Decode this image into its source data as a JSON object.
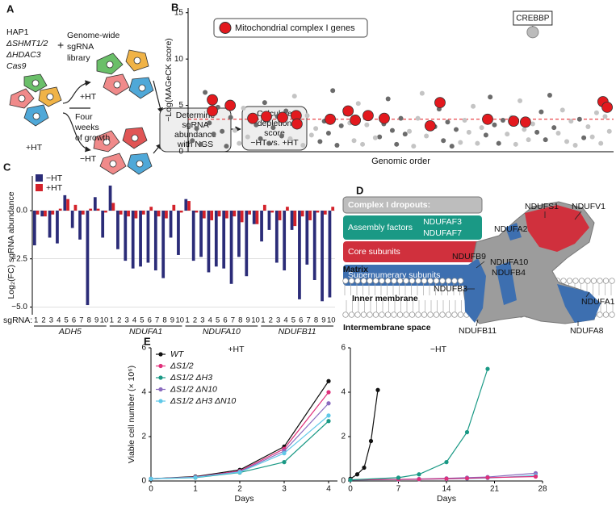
{
  "panels": [
    "A",
    "B",
    "C",
    "D",
    "E"
  ],
  "panel_a": {
    "strain": [
      "HAP1",
      "ΔSHMT1/2",
      "ΔHDAC3",
      "Cas9"
    ],
    "plus": "+",
    "library": [
      "Genome-wide",
      "sgRNA",
      "library"
    ],
    "start_condition": "+HT",
    "arrow_plus": "+HT",
    "arrow_minus": "−HT",
    "growth": [
      "Four",
      "weeks",
      "of growth"
    ],
    "box1": [
      "Determine",
      "sgRNA",
      "abundance",
      "with NGS"
    ],
    "box2": [
      "Calculate",
      "depletion",
      "score",
      "−HT vs. +HT"
    ]
  },
  "panel_d": {
    "legend_title": "Complex I dropouts:",
    "assembly": "Assembly factors",
    "assembly_genes": [
      "NDUFAF3",
      "NDUFAF7"
    ],
    "core": "Core subunits",
    "supernumerary": "Supernumerary subunits",
    "regions": [
      "Matrix",
      "Inner membrane",
      "Intermembrane space"
    ],
    "subunits": [
      "NDUFS1",
      "NDUFV1",
      "NDUFA2",
      "NDUFB9",
      "NDUFA10",
      "NDUFB4",
      "NDUFB3",
      "NDUFA1",
      "NDUFB11",
      "NDUFA8"
    ]
  },
  "chart_data": [
    {
      "type": "scatter",
      "y_label": "−Log(MAGeCK score)",
      "x_label": "Genomic order",
      "xlim": [
        0,
        100
      ],
      "ylim": [
        0,
        15.5
      ],
      "yticks": [
        0,
        5,
        10,
        15
      ],
      "threshold": 3.5,
      "legend": "upper left",
      "series": [
        {
          "color": "#6b6b6b",
          "x": [
            1,
            2,
            3,
            4,
            5,
            6,
            7,
            8,
            9,
            10,
            16,
            17,
            18,
            19,
            20,
            21,
            22,
            23,
            31,
            32,
            33,
            34,
            35,
            36,
            37,
            45,
            46,
            47,
            48,
            49,
            50,
            51,
            58,
            59,
            60,
            61,
            62,
            63,
            70,
            71,
            72,
            73,
            74,
            82,
            83,
            84,
            85,
            86,
            92,
            93
          ],
          "values": [
            1.2,
            2.5,
            0.8,
            6.4,
            3.1,
            1.9,
            4.8,
            2.2,
            0.6,
            3.7,
            2.9,
            1.4,
            5.3,
            0.9,
            2.6,
            3.8,
            1.7,
            4.4,
            1.1,
            3.3,
            2.0,
            6.6,
            0.7,
            2.8,
            4.1,
            1.6,
            3.0,
            5.7,
            2.3,
            0.8,
            3.6,
            1.9,
            2.7,
            4.6,
            1.2,
            3.2,
            0.6,
            2.4,
            1.8,
            5.9,
            2.9,
            0.9,
            3.4,
            2.1,
            4.3,
            1.3,
            6.1,
            2.6,
            3.5,
            1.5
          ]
        },
        {
          "color": "#c4c4c4",
          "x": [
            11,
            12,
            13,
            14,
            15,
            24,
            25,
            26,
            27,
            28,
            29,
            30,
            38,
            39,
            40,
            41,
            42,
            43,
            44,
            52,
            53,
            54,
            55,
            56,
            57,
            64,
            65,
            66,
            67,
            68,
            69,
            75,
            76,
            77,
            78,
            79,
            80,
            81,
            87,
            88,
            89,
            90,
            91,
            94,
            95,
            96,
            97,
            98,
            99
          ],
          "values": [
            2.3,
            0.9,
            4.7,
            1.6,
            3.2,
            1.4,
            6.0,
            2.7,
            0.7,
            3.9,
            1.8,
            2.5,
            3.1,
            1.2,
            5.2,
            0.8,
            2.9,
            4.0,
            1.5,
            2.2,
            0.6,
            3.6,
            6.3,
            1.7,
            2.8,
            1.0,
            3.4,
            2.1,
            4.9,
            0.9,
            2.6,
            1.9,
            3.7,
            0.8,
            5.5,
            2.4,
            1.3,
            3.0,
            2.0,
            4.5,
            1.1,
            3.3,
            0.7,
            2.7,
            1.6,
            4.2,
            0.9,
            3.8,
            2.2
          ]
        },
        {
          "name": "Mitochondrial complex I genes",
          "color": "#e3191e",
          "x": [
            5.7,
            5.7,
            9.9,
            15.2,
            18.4,
            22.2,
            25.4,
            25.6,
            33.4,
            37.6,
            39.3,
            42.3,
            46.1,
            56.9,
            59.2,
            70.4,
            76.5,
            79.3,
            97.5,
            98.5
          ],
          "values": [
            4.4,
            5.6,
            5.0,
            3.6,
            3.8,
            3.7,
            3.9,
            3.0,
            3.5,
            4.4,
            3.4,
            3.9,
            3.6,
            2.8,
            5.3,
            3.5,
            3.3,
            3.2,
            5.4,
            4.8
          ]
        }
      ],
      "annotations": [
        {
          "text": "CREBBP",
          "x": 81,
          "y": 12.9
        }
      ]
    },
    {
      "type": "bar",
      "y_label": "Log₂(FC) sgRNA abundance",
      "x_label": "sgRNA:",
      "ylim": [
        -5.4,
        1.8
      ],
      "grid": true,
      "legend": "upper left",
      "yticks": [
        {
          "value": 0,
          "label": "0.0"
        },
        {
          "value": -2.5,
          "label": "−2.5"
        },
        {
          "value": -5,
          "label": "−5.0"
        }
      ],
      "categories": [
        "1",
        "2",
        "3",
        "4",
        "5",
        "6",
        "7",
        "8",
        "9",
        "10",
        "1",
        "2",
        "3",
        "4",
        "5",
        "6",
        "7",
        "8",
        "9",
        "10",
        "1",
        "2",
        "3",
        "4",
        "5",
        "6",
        "7",
        "8",
        "9",
        "10",
        "1",
        "2",
        "3",
        "4",
        "5",
        "6",
        "7",
        "8",
        "9",
        "10"
      ],
      "groups": [
        "ADH5",
        "NDUFA1",
        "NDUFA10",
        "NDUFB11"
      ],
      "series": [
        {
          "name": "−HT",
          "color": "#2b2c78",
          "values": [
            -1.8,
            -0.3,
            -1.4,
            -1.7,
            0.8,
            -0.9,
            -1.5,
            -4.9,
            0.7,
            -1.4,
            1.3,
            -2.0,
            -2.6,
            -3.0,
            -2.9,
            -2.7,
            -3.1,
            -3.5,
            -1.4,
            -2.3,
            0.6,
            -2.6,
            -2.4,
            -3.2,
            -2.9,
            -3.0,
            -3.8,
            -2.4,
            -3.4,
            -0.7,
            -1.6,
            -1.0,
            -2.7,
            -3.1,
            -1.0,
            -4.6,
            -2.8,
            -3.6,
            -4.7,
            -4.5
          ]
        },
        {
          "name": "+HT",
          "color": "#d3222a",
          "values": [
            -0.2,
            -0.3,
            -0.2,
            0.1,
            0.6,
            0.3,
            -0.2,
            0.1,
            0.1,
            -0.1,
            0.4,
            -0.2,
            -0.3,
            -0.4,
            -0.2,
            0.2,
            -0.3,
            -0.4,
            0.3,
            -0.1,
            0.5,
            -0.1,
            -0.4,
            -0.5,
            -0.3,
            -0.4,
            -0.3,
            -0.6,
            -0.2,
            -0.7,
            0.3,
            -0.1,
            -0.5,
            0.2,
            -0.8,
            -0.3,
            -0.5,
            -0.1,
            -0.2,
            0.2
          ]
        }
      ]
    },
    {
      "type": "line",
      "y_label": "Viable cell number (× 10⁶)",
      "x_label": "Days",
      "annotation": "+HT",
      "legend": "upper left",
      "x": [
        0,
        1,
        2,
        3,
        4
      ],
      "xlim": [
        0,
        4.2
      ],
      "xticks": [
        0,
        1,
        2,
        3,
        4
      ],
      "ylim": [
        0,
        6
      ],
      "yticks": [
        0,
        2,
        4,
        6
      ],
      "series": [
        {
          "name": "WT",
          "color": "#111111",
          "values": [
            0.1,
            0.2,
            0.5,
            1.55,
            4.5
          ]
        },
        {
          "name": "ΔS1/2",
          "color": "#e0307a",
          "values": [
            0.1,
            0.18,
            0.45,
            1.45,
            4.0
          ]
        },
        {
          "name": "ΔS1/2 ΔH3",
          "color": "#1a9985",
          "values": [
            0.1,
            0.15,
            0.38,
            0.85,
            2.7
          ]
        },
        {
          "name": "ΔS1/2 ΔN10",
          "color": "#8a6cbf",
          "values": [
            0.1,
            0.17,
            0.42,
            1.35,
            3.5
          ]
        },
        {
          "name": "ΔS1/2 ΔH3 ΔN10",
          "color": "#5fc8e8",
          "values": [
            0.1,
            0.16,
            0.4,
            1.25,
            2.95
          ]
        }
      ]
    },
    {
      "type": "line",
      "x_label": "Days",
      "annotation": "−HT",
      "xlim": [
        0,
        28
      ],
      "xticks": [
        0,
        7,
        14,
        21,
        28
      ],
      "ylim": [
        0,
        6
      ],
      "yticks": [
        0,
        2,
        4,
        6
      ],
      "series": [
        {
          "color": "#111111",
          "x": [
            0,
            1,
            2,
            3,
            4
          ],
          "values": [
            0.1,
            0.3,
            0.6,
            1.8,
            4.1
          ]
        },
        {
          "color": "#8a6cbf",
          "x": [
            0,
            7,
            10,
            14,
            17,
            20,
            27
          ],
          "values": [
            0.05,
            0.07,
            0.09,
            0.12,
            0.15,
            0.18,
            0.35
          ]
        },
        {
          "color": "#5fc8e8",
          "x": [
            0,
            7,
            10,
            14,
            17,
            20,
            27
          ],
          "values": [
            0.05,
            0.06,
            0.07,
            0.09,
            0.11,
            0.13,
            0.25
          ]
        },
        {
          "color": "#e0307a",
          "x": [
            0,
            7,
            10,
            14,
            17,
            20,
            27
          ],
          "values": [
            0.05,
            0.07,
            0.08,
            0.1,
            0.12,
            0.15,
            0.2
          ]
        },
        {
          "color": "#1a9985",
          "x": [
            0,
            7,
            10,
            14,
            17,
            20
          ],
          "values": [
            0.05,
            0.15,
            0.3,
            0.85,
            2.2,
            5.05
          ]
        }
      ]
    }
  ]
}
